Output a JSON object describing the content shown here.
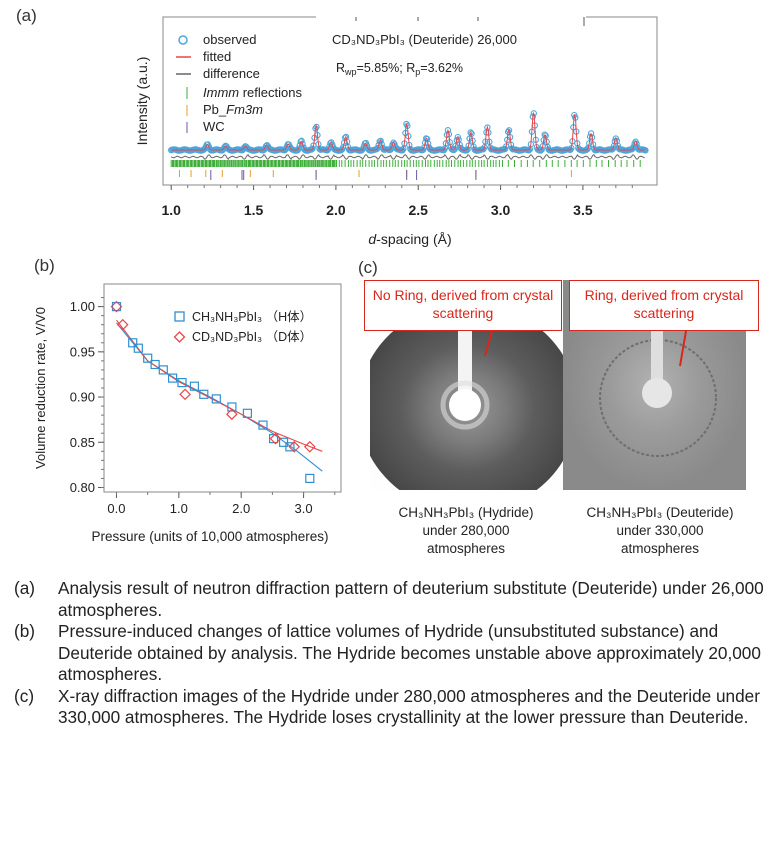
{
  "panel_a": {
    "label": "(a)",
    "annotation_title": "CD₃ND₃PbI₃ (Deuteride) 26,000",
    "legend": {
      "observed": "observed",
      "fitted": "fitted",
      "difference": "difference",
      "immm_italic": "Immm",
      "immm_rest": " reflections",
      "pb_prefix": "Pb_",
      "pb_italic": "Fm3m",
      "wc": "WC"
    },
    "rwp_label": "R",
    "rwp_sub": "wp",
    "rwp_value": "=5.85%; R",
    "rp_sub": "p",
    "rp_value": "=3.62%"
  },
  "panel_b": {
    "label": "(b)"
  },
  "panel_c": {
    "label": "(c)",
    "box_left": "No Ring, derived from crystal scattering",
    "box_right": "Ring, derived from crystal scattering",
    "caption_left": [
      "CH₃NH₃PbI₃ (Hydride)",
      "under 280,000",
      "atmospheres"
    ],
    "caption_right": [
      "CH₃NH₃PbI₃ (Deuteride)",
      "under 330,000",
      "atmospheres"
    ]
  },
  "chart_data": [
    {
      "type": "line",
      "title": "",
      "xlabel_italic": "d",
      "xlabel_rest": "-spacing (Å)",
      "ylabel": "Intensity (a.u.)",
      "xlim": [
        0.95,
        3.95
      ],
      "xticks": [
        "1.0",
        "1.5",
        "2.0",
        "2.5",
        "3.0",
        "3.5"
      ],
      "xtick_values": [
        1.0,
        1.5,
        2.0,
        2.5,
        3.0,
        3.5
      ],
      "background": 1.0,
      "peaks": [
        {
          "d": 1.22,
          "h": 0.5
        },
        {
          "d": 1.33,
          "h": 0.35
        },
        {
          "d": 1.45,
          "h": 0.35
        },
        {
          "d": 1.58,
          "h": 0.45
        },
        {
          "d": 1.71,
          "h": 0.55
        },
        {
          "d": 1.79,
          "h": 0.8
        },
        {
          "d": 1.88,
          "h": 2.2
        },
        {
          "d": 1.97,
          "h": 0.7
        },
        {
          "d": 2.06,
          "h": 1.2
        },
        {
          "d": 2.18,
          "h": 0.6
        },
        {
          "d": 2.27,
          "h": 0.9
        },
        {
          "d": 2.35,
          "h": 0.7
        },
        {
          "d": 2.43,
          "h": 2.4
        },
        {
          "d": 2.55,
          "h": 1.1
        },
        {
          "d": 2.68,
          "h": 1.8
        },
        {
          "d": 2.74,
          "h": 1.2
        },
        {
          "d": 2.82,
          "h": 1.6
        },
        {
          "d": 2.92,
          "h": 2.1
        },
        {
          "d": 3.05,
          "h": 1.9
        },
        {
          "d": 3.2,
          "h": 3.4
        },
        {
          "d": 3.27,
          "h": 1.4
        },
        {
          "d": 3.45,
          "h": 3.3
        },
        {
          "d": 3.55,
          "h": 1.5
        },
        {
          "d": 3.7,
          "h": 1.1
        },
        {
          "d": 3.82,
          "h": 0.8
        }
      ],
      "tick_rows": {
        "immm": "green",
        "pb": "orange",
        "wc": "purple"
      },
      "colors": {
        "observed": "#4aa6dc",
        "fitted": "#e8474a",
        "difference": "#666666",
        "immm": "#3fae3a",
        "pb": "#e89a2c",
        "wc": "#6b5aa0"
      }
    },
    {
      "type": "scatter",
      "title": "",
      "xlabel": "Pressure (units of 10,000 atmospheres)",
      "ylabel": "Volume reduction rate, V/V0",
      "xlim": [
        -0.2,
        3.6
      ],
      "ylim": [
        0.795,
        1.025
      ],
      "xticks": [
        "0.0",
        "1.0",
        "2.0",
        "3.0"
      ],
      "xtick_values": [
        0,
        1,
        2,
        3
      ],
      "yticks": [
        "1.00",
        "0.95",
        "0.90",
        "0.85",
        "0.80"
      ],
      "ytick_values": [
        1.0,
        0.95,
        0.9,
        0.85,
        0.8
      ],
      "series": [
        {
          "name": "CH₃NH₃PbI₃ （H体）",
          "marker": "square",
          "color": "#2f8fd0",
          "x": [
            0.0,
            0.26,
            0.35,
            0.5,
            0.62,
            0.75,
            0.9,
            1.05,
            1.25,
            1.4,
            1.6,
            1.85,
            2.1,
            2.35,
            2.52,
            2.68,
            2.78,
            3.1
          ],
          "y": [
            1.0,
            0.96,
            0.954,
            0.943,
            0.936,
            0.93,
            0.921,
            0.916,
            0.912,
            0.903,
            0.898,
            0.889,
            0.882,
            0.869,
            0.854,
            0.85,
            0.845,
            0.81
          ]
        },
        {
          "name": "CD₃ND₃PbI₃ （D体）",
          "marker": "diamond",
          "color": "#e8474a",
          "x": [
            0.0,
            0.1,
            1.1,
            1.85,
            2.55,
            2.85,
            3.1
          ],
          "y": [
            1.0,
            0.98,
            0.903,
            0.881,
            0.854,
            0.845,
            0.845
          ]
        }
      ],
      "fit_lines": [
        {
          "series": 0,
          "color": "#2f8fd0",
          "x": [
            0.0,
            0.5,
            1.0,
            1.5,
            2.0,
            2.5,
            2.9,
            3.3
          ],
          "y": [
            0.982,
            0.94,
            0.918,
            0.9,
            0.881,
            0.86,
            0.84,
            0.818
          ]
        },
        {
          "series": 1,
          "color": "#e8474a",
          "x": [
            0.0,
            0.5,
            1.0,
            1.5,
            2.0,
            2.5,
            3.0,
            3.3
          ],
          "y": [
            0.985,
            0.94,
            0.917,
            0.899,
            0.881,
            0.862,
            0.848,
            0.84
          ]
        }
      ]
    }
  ],
  "captions": [
    {
      "key": "(a)",
      "text": "Analysis result of neutron diffraction pattern of deuterium substitute (Deuteride) under 26,000 atmospheres."
    },
    {
      "key": "(b)",
      "text": "Pressure-induced changes of lattice volumes of Hydride (unsubstituted substance) and Deuteride obtained by analysis. The Hydride becomes unstable above approximately 20,000 atmospheres."
    },
    {
      "key": "(c)",
      "text": "X-ray diffraction images of the Hydride under 280,000 atmospheres and the Deuteride under 330,000 atmospheres. The Hydride loses crystallinity at the lower pressure than Deuteride."
    }
  ]
}
